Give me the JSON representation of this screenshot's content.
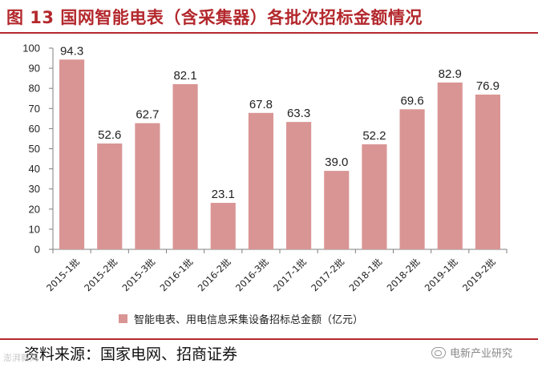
{
  "title": "图 13 国网智能电表（含采集器）各批次招标金额情况",
  "source": "资料来源：国家电网、招商证券",
  "watermark": "电新产业研究",
  "watermark_small": "澎湃新闻",
  "chart_data": {
    "type": "bar",
    "categories": [
      "2015-1批",
      "2015-2批",
      "2015-3批",
      "2016-1批",
      "2016-2批",
      "2016-3批",
      "2017-1批",
      "2017-2批",
      "2018-1批",
      "2018-2批",
      "2019-1批",
      "2019-2批"
    ],
    "series": [
      {
        "name": "智能电表、用电信息采集设备招标总金额（亿元）",
        "values": [
          94.3,
          52.6,
          62.7,
          82.1,
          23.1,
          67.8,
          63.3,
          39.0,
          52.2,
          69.6,
          82.9,
          76.9
        ]
      }
    ],
    "data_labels": [
      "94.3",
      "52.6",
      "62.7",
      "82.1",
      "23.1",
      "67.8",
      "63.3",
      "39.0",
      "52.2",
      "69.6",
      "82.9",
      "76.9"
    ],
    "yticks": [
      "0",
      "10",
      "20",
      "30",
      "40",
      "50",
      "60",
      "70",
      "80",
      "90",
      "100"
    ],
    "ylim": [
      0,
      100
    ],
    "grid": false,
    "legend_position": "bottom",
    "bar_color": "#d99594"
  }
}
